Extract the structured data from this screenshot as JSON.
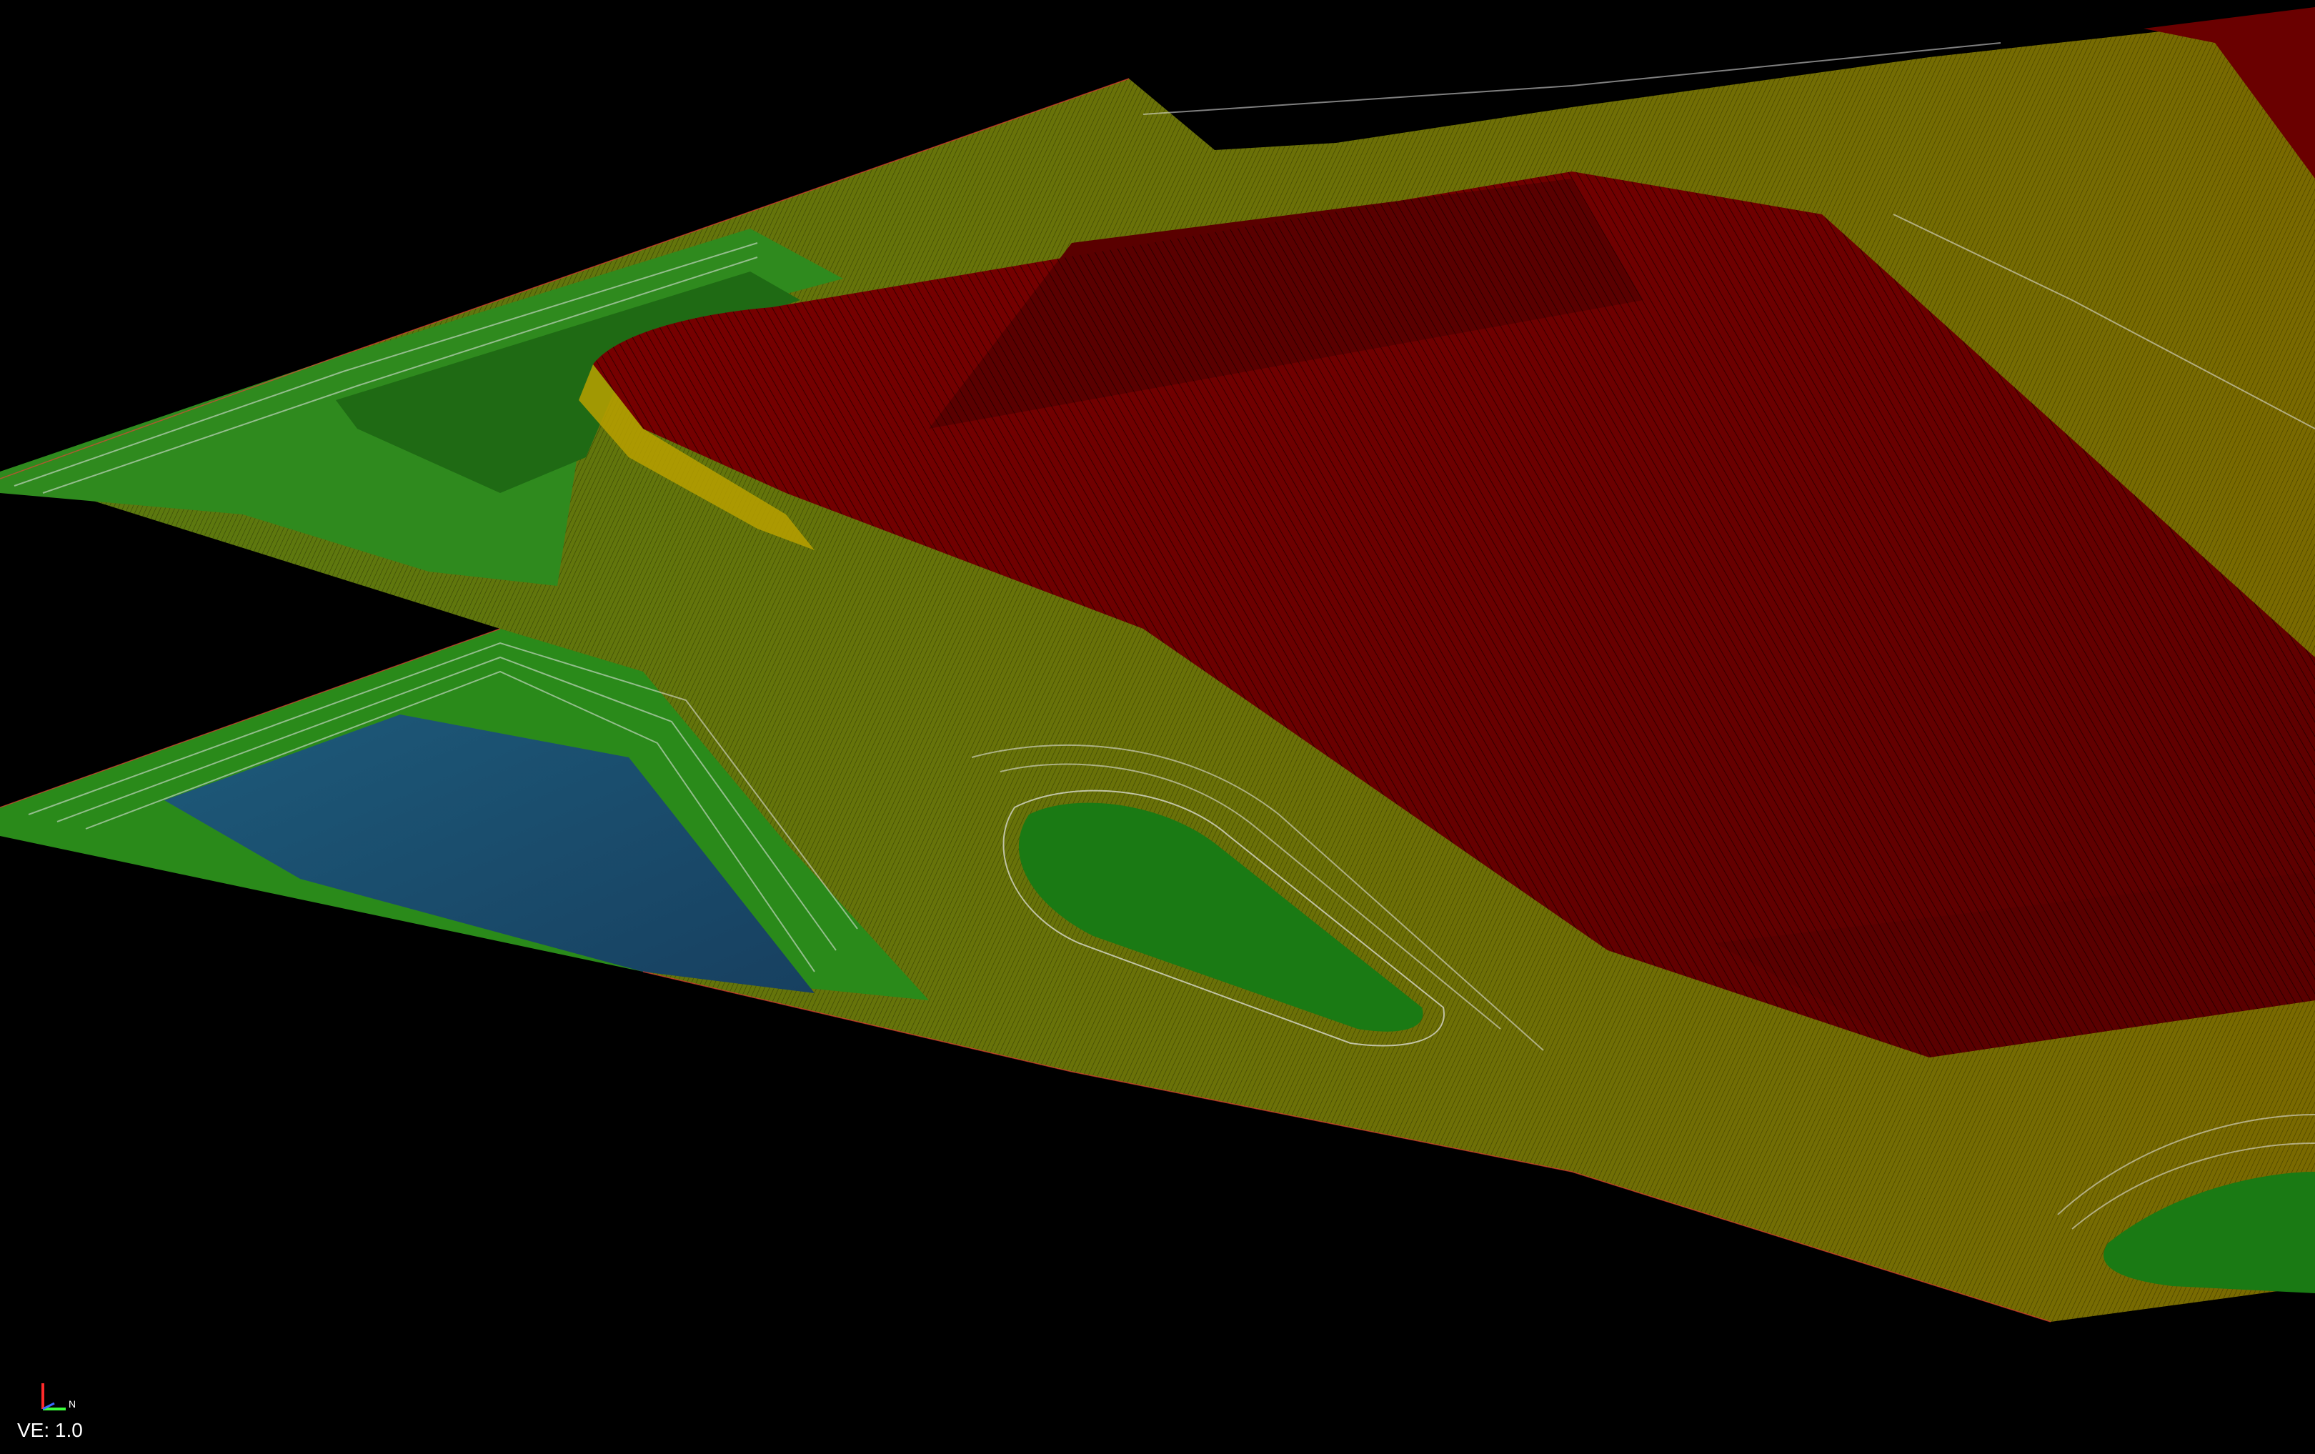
{
  "viewport": {
    "background": "#000000",
    "surface_palette": {
      "high": "#6a0000",
      "upper_mid": "#7a7a00",
      "mid": "#2a8a1a",
      "low": "#1d5a7a",
      "contour_lines": "#e8e8e8",
      "mesh_lines": "#000000"
    }
  },
  "axis_indicator": {
    "north_label": "N",
    "x_color": "#ff2a2a",
    "y_color": "#3aff3a",
    "z_color": "#3a6bff"
  },
  "vertical_exaggeration": {
    "text": "VE: 1.0"
  }
}
